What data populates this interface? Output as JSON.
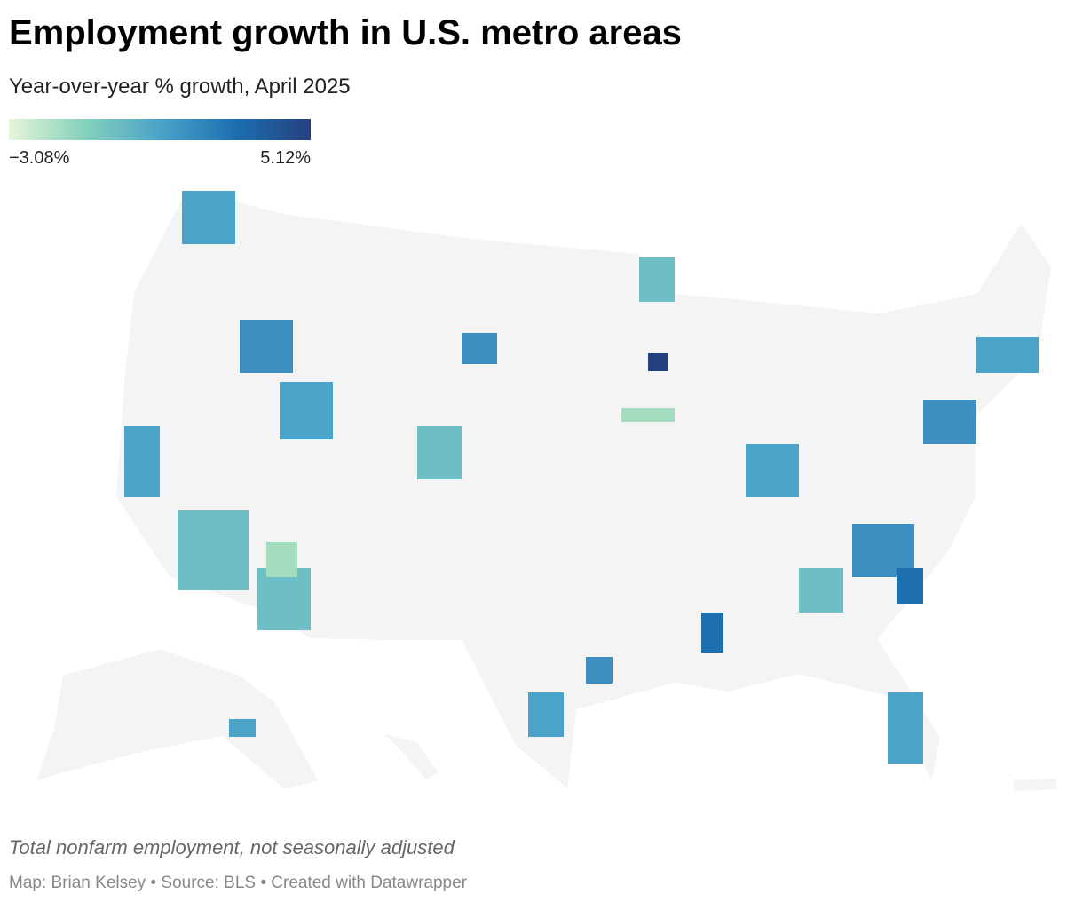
{
  "header": {
    "title": "Employment growth in U.S. metro areas",
    "subtitle": "Year-over-year % growth, April 2025"
  },
  "legend": {
    "min": {
      "value": -3.08,
      "label": "−3.08%"
    },
    "max": {
      "value": 5.12,
      "label": "5.12%"
    },
    "colors": [
      "#e6f5d8",
      "#86d1bd",
      "#4aa3c8",
      "#1d6fb0",
      "#24417f"
    ]
  },
  "footer": {
    "note": "Total nonfarm employment, not seasonally adjusted",
    "credit": "Map: Brian Kelsey • Source: BLS • Created with Datawrapper"
  }
}
